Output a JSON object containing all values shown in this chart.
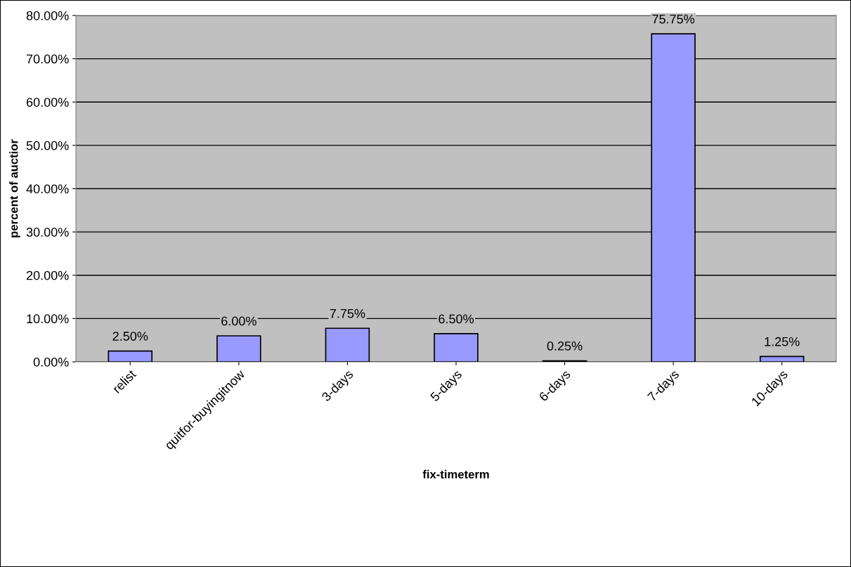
{
  "chart_data": {
    "type": "bar",
    "xlabel": "fix-timeterm",
    "ylabel": "percent of auctior",
    "categories": [
      "relist",
      "quitfor-buyingitnow",
      "3-days",
      "5-days",
      "6-days",
      "7-days",
      "10-days"
    ],
    "values": [
      2.5,
      6.0,
      7.75,
      6.5,
      0.25,
      75.75,
      1.25
    ],
    "value_labels": [
      "2.50%",
      "6.00%",
      "7.75%",
      "6.50%",
      "0.25%",
      "75.75%",
      "1.25%"
    ],
    "color": "#9999ff",
    "ylim": [
      0,
      80
    ],
    "yticks": [
      {
        "value": 0,
        "label": "0.00%"
      },
      {
        "value": 10,
        "label": "10.00%"
      },
      {
        "value": 20,
        "label": "20.00%"
      },
      {
        "value": 30,
        "label": "30.00%"
      },
      {
        "value": 40,
        "label": "40.00%"
      },
      {
        "value": 50,
        "label": "50.00%"
      },
      {
        "value": 60,
        "label": "60.00%"
      },
      {
        "value": 70,
        "label": "70.00%"
      },
      {
        "value": 80,
        "label": "80.00%"
      }
    ],
    "grid": "y",
    "legend": false
  }
}
